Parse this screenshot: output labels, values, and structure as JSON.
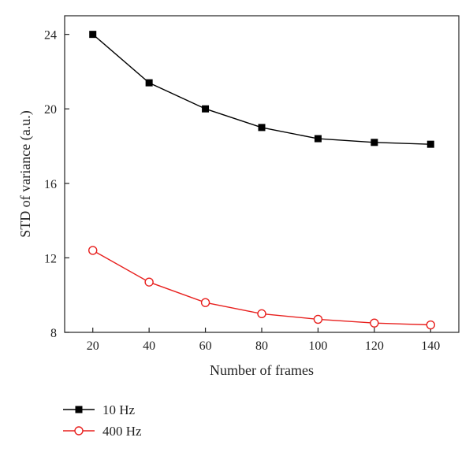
{
  "chart_data": {
    "type": "line",
    "title": "",
    "xlabel": "Number of frames",
    "ylabel": "STD of variance (a.u.)",
    "x": [
      20,
      40,
      60,
      80,
      100,
      120,
      140
    ],
    "xlim": [
      10,
      150
    ],
    "ylim": [
      8,
      25
    ],
    "x_ticks": [
      20,
      40,
      60,
      80,
      100,
      120,
      140
    ],
    "y_ticks": [
      8,
      12,
      16,
      20,
      24
    ],
    "grid": false,
    "legend_position": "bottom-left",
    "series": [
      {
        "name": "10 Hz",
        "color": "#000000",
        "marker": "filled-square",
        "values": [
          24.0,
          21.4,
          20.0,
          19.0,
          18.4,
          18.2,
          18.1
        ]
      },
      {
        "name": "400 Hz",
        "color": "#e8201e",
        "marker": "open-circle",
        "values": [
          12.4,
          10.7,
          9.6,
          9.0,
          8.7,
          8.5,
          8.4
        ]
      }
    ]
  }
}
